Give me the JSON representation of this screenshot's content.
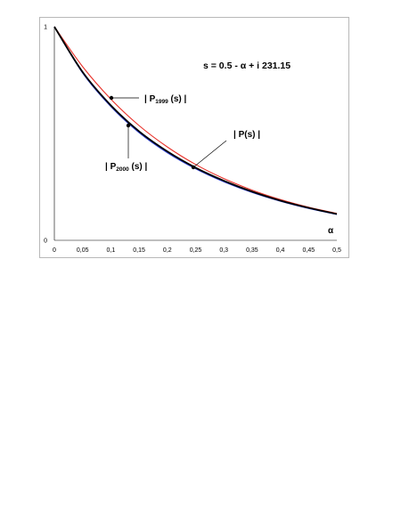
{
  "chart_data": {
    "type": "line",
    "formula": "s = 0.5 - α + i 231.15",
    "xlabel": "α",
    "ylabel": "",
    "xlim": [
      0,
      0.5
    ],
    "ylim": [
      0,
      1
    ],
    "x_ticks": [
      "0",
      "0,05",
      "0,1",
      "0,15",
      "0,2",
      "0,25",
      "0,3",
      "0,35",
      "0,4",
      "0,45",
      "0,5"
    ],
    "y_ticks": [
      "0",
      "1"
    ],
    "grid": false,
    "x": [
      0,
      0.05,
      0.1,
      0.15,
      0.2,
      0.25,
      0.3,
      0.35,
      0.4,
      0.45,
      0.5
    ],
    "series": [
      {
        "name": "| P1999 (s) |",
        "color": "#e8322a",
        "values": [
          1.0,
          0.813,
          0.661,
          0.537,
          0.437,
          0.355,
          0.289,
          0.235,
          0.191,
          0.155,
          0.126
        ]
      },
      {
        "name": "| P(s) |",
        "color": "#000000",
        "values": [
          1.0,
          0.788,
          0.632,
          0.51,
          0.416,
          0.34,
          0.279,
          0.228,
          0.186,
          0.152,
          0.123
        ]
      },
      {
        "name": "| P2000 (s) |",
        "color": "#2b3fd6",
        "values": [
          1.0,
          0.783,
          0.626,
          0.504,
          0.41,
          0.335,
          0.274,
          0.224,
          0.183,
          0.149,
          0.121
        ]
      }
    ],
    "annotations": [
      {
        "series": 0,
        "x": 0.1,
        "label_main": "| P",
        "label_sub": "1999",
        "label_tail": " (s) |"
      },
      {
        "series": 2,
        "x": 0.13,
        "label_main": "| P",
        "label_sub": "2000",
        "label_tail": " (s) |"
      },
      {
        "series": 1,
        "x": 0.25,
        "label_main": "| P(s) |",
        "label_sub": "",
        "label_tail": ""
      }
    ]
  }
}
